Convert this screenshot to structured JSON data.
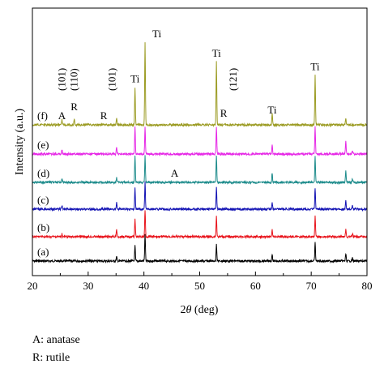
{
  "chart_data": {
    "type": "line",
    "xlabel_prefix": "2",
    "xlabel_theta": "θ",
    "xlabel_suffix": " (deg)",
    "ylabel": "Intensity (a.u.)",
    "xlim": [
      20,
      80
    ],
    "xticks": [
      "20",
      "30",
      "40",
      "50",
      "60",
      "70",
      "80"
    ],
    "grid": false,
    "series": [
      {
        "name": "(a)",
        "color": "#000000",
        "peaks": [
          [
            35.1,
            0.18
          ],
          [
            38.4,
            0.62
          ],
          [
            40.2,
            1.1
          ],
          [
            53.0,
            0.72
          ],
          [
            63.0,
            0.3
          ],
          [
            70.7,
            0.75
          ],
          [
            76.2,
            0.3
          ],
          [
            77.4,
            0.12
          ]
        ]
      },
      {
        "name": "(b)",
        "color": "#e8141c",
        "peaks": [
          [
            25.3,
            0.12
          ],
          [
            35.1,
            0.3
          ],
          [
            38.4,
            0.75
          ],
          [
            40.2,
            1.1
          ],
          [
            53.0,
            0.85
          ],
          [
            63.0,
            0.3
          ],
          [
            70.7,
            0.85
          ],
          [
            76.2,
            0.3
          ],
          [
            77.4,
            0.12
          ]
        ]
      },
      {
        "name": "(c)",
        "color": "#1414b4",
        "peaks": [
          [
            25.3,
            0.15
          ],
          [
            35.1,
            0.3
          ],
          [
            38.4,
            0.85
          ],
          [
            40.2,
            1.1
          ],
          [
            53.0,
            0.9
          ],
          [
            63.0,
            0.3
          ],
          [
            70.7,
            0.9
          ],
          [
            76.2,
            0.35
          ],
          [
            77.4,
            0.15
          ]
        ]
      },
      {
        "name": "(d)",
        "color": "#1e8c8c",
        "peaks": [
          [
            25.3,
            0.15
          ],
          [
            35.1,
            0.2
          ],
          [
            38.4,
            1.1
          ],
          [
            40.2,
            1.1
          ],
          [
            53.0,
            1.1
          ],
          [
            63.0,
            0.4
          ],
          [
            70.7,
            1.1
          ],
          [
            76.2,
            0.45
          ],
          [
            77.4,
            0.15
          ]
        ]
      },
      {
        "name": "(e)",
        "color": "#e628e6",
        "peaks": [
          [
            25.3,
            0.18
          ],
          [
            35.1,
            0.28
          ],
          [
            38.4,
            1.1
          ],
          [
            40.2,
            1.1
          ],
          [
            53.0,
            1.1
          ],
          [
            63.0,
            0.35
          ],
          [
            70.7,
            1.1
          ],
          [
            76.2,
            0.55
          ],
          [
            77.4,
            0.15
          ]
        ]
      },
      {
        "name": "(f)",
        "color": "#9b9b22",
        "peaks": [
          [
            25.3,
            0.2
          ],
          [
            27.5,
            0.25
          ],
          [
            35.1,
            0.25
          ],
          [
            38.4,
            1.55
          ],
          [
            40.2,
            3.4
          ],
          [
            53.0,
            2.6
          ],
          [
            63.0,
            0.5
          ],
          [
            70.7,
            2.05
          ],
          [
            76.2,
            0.3
          ]
        ]
      }
    ],
    "annotations": [
      {
        "text": "A",
        "x": 25.3,
        "series": "(f)"
      },
      {
        "text": "(101)",
        "x": 25.3,
        "series": "(f)",
        "rotated": true
      },
      {
        "text": "(110)",
        "x": 27.5,
        "series": "(f)",
        "rotated": true
      },
      {
        "text": "R",
        "x": 27.5,
        "series": "(f)"
      },
      {
        "text": "R",
        "x": 32.8,
        "series": "(f)"
      },
      {
        "text": "(101)",
        "x": 34.3,
        "series": "(f)",
        "rotated": true
      },
      {
        "text": "Ti",
        "x": 38.4,
        "series": "(f)"
      },
      {
        "text": "Ti",
        "x": 40.2,
        "series": "(f)"
      },
      {
        "text": "Ti",
        "x": 53.0,
        "series": "(f)"
      },
      {
        "text": "R",
        "x": 54.3,
        "series": "(f)"
      },
      {
        "text": "(121)",
        "x": 56.0,
        "series": "(f)",
        "rotated": true
      },
      {
        "text": "Ti",
        "x": 63.0,
        "series": "(f)"
      },
      {
        "text": "Ti",
        "x": 70.7,
        "series": "(f)"
      },
      {
        "text": "A",
        "x": 45.5,
        "series": "(d)"
      }
    ]
  },
  "legend": {
    "line1": "A: anatase",
    "line2": "R: rutile"
  }
}
